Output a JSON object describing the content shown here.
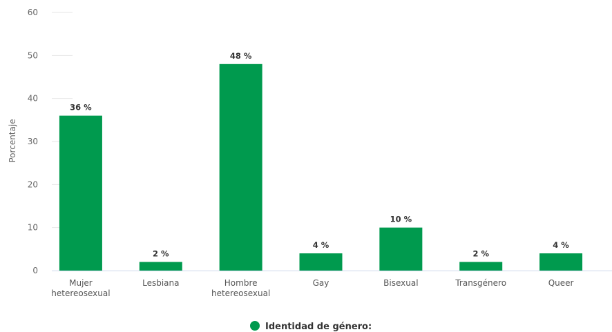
{
  "chart_data": {
    "type": "bar",
    "categories": [
      [
        "Mujer",
        "hetereosexual"
      ],
      [
        "Lesbiana"
      ],
      [
        "Hombre",
        "hetereosexual"
      ],
      [
        "Gay"
      ],
      [
        "Bisexual"
      ],
      [
        "Transgénero"
      ],
      [
        "Queer"
      ]
    ],
    "series": [
      {
        "name": "Identidad de género:",
        "values": [
          36,
          2,
          48,
          4,
          10,
          2,
          4
        ],
        "data_labels": [
          "36 %",
          "2 %",
          "48 %",
          "4 %",
          "10 %",
          "2 %",
          "4 %"
        ],
        "color": "#009a4e"
      }
    ],
    "ylabel": "Porcentaje",
    "ylim": [
      0,
      60
    ],
    "yticks": [
      0,
      10,
      20,
      30,
      40,
      50,
      60
    ],
    "grid": true,
    "legend": "bottom-center"
  },
  "colors": {
    "bar": "#009a4e",
    "grid": "#e6e6e6",
    "axis": "#ccd6eb"
  }
}
